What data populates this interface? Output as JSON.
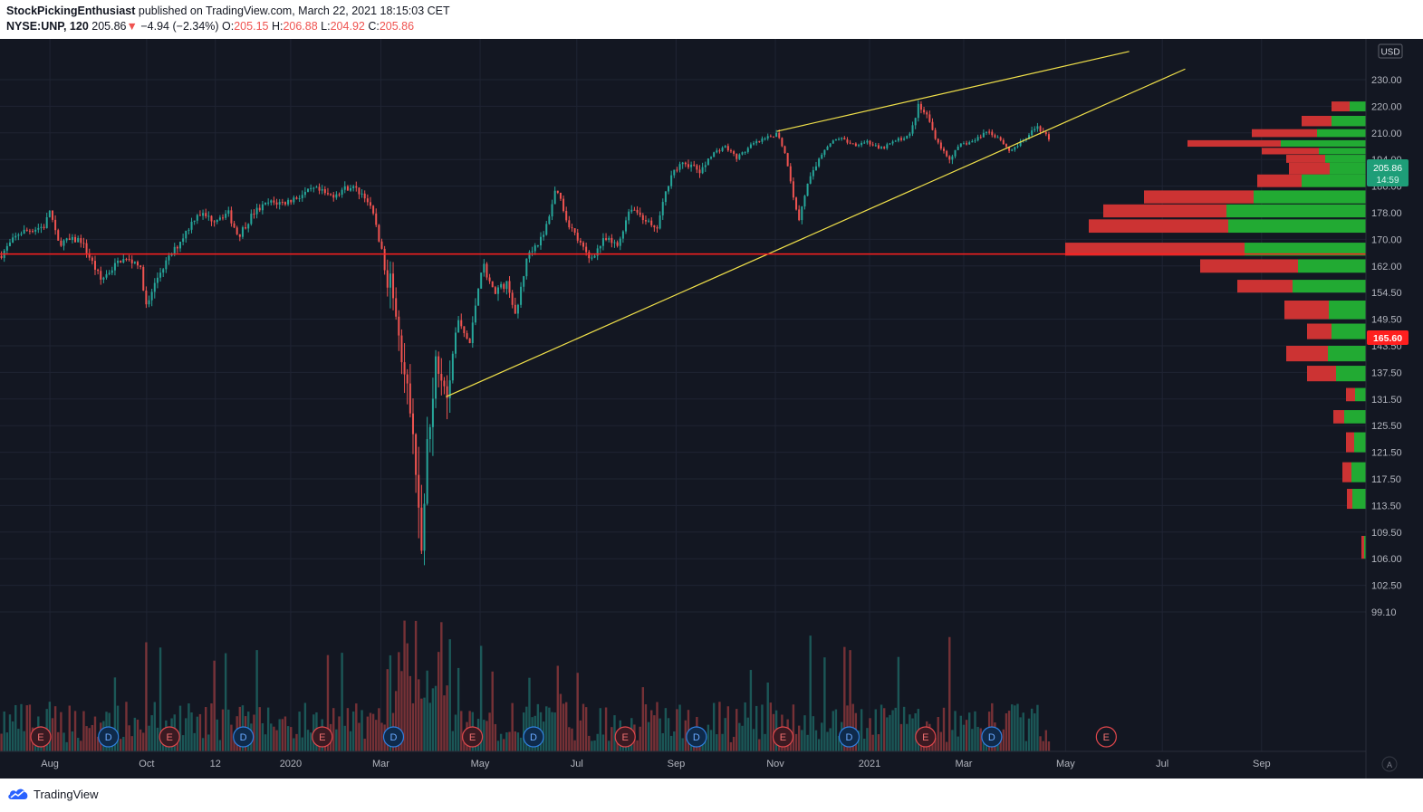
{
  "header": {
    "publisher": "StockPickingEnthusiast",
    "published_text": "published on TradingView.com, March 22, 2021 18:15:03 CET",
    "symbol": "NYSE:UNP, 120",
    "last": "205.86",
    "change_arrow": "▼",
    "change": "−4.94 (−2.34%)",
    "o_label": "O:",
    "o_value": "205.15",
    "h_label": "H:",
    "h_value": "206.88",
    "l_label": "L:",
    "l_value": "204.92",
    "c_label": "C:",
    "c_value": "205.86"
  },
  "footer": {
    "brand": "TradingView"
  },
  "colors": {
    "background": "#131722",
    "up": "#26a69a",
    "down": "#ef5350",
    "trendline": "#f0e04a",
    "hline": "#ff1f1f",
    "vp_up": "#22aa33",
    "vp_down": "#cc3333",
    "grid": "#1f2433",
    "axis_text": "#b2b5be"
  },
  "chart_data": {
    "type": "candlestick",
    "symbol": "NYSE:UNP",
    "interval": "120",
    "currency": "USD",
    "current_price": {
      "price_label": "205.86",
      "countdown": "14:59"
    },
    "horizontal_line": {
      "price": 165.6,
      "label": "165.60"
    },
    "y_ticks": [
      {
        "label": "230.00",
        "value": 230
      },
      {
        "label": "220.00",
        "value": 220
      },
      {
        "label": "210.00",
        "value": 210
      },
      {
        "label": "194.00",
        "value": 194
      },
      {
        "label": "186.00",
        "value": 186
      },
      {
        "label": "178.00",
        "value": 178
      },
      {
        "label": "170.00",
        "value": 170
      },
      {
        "label": "162.00",
        "value": 162
      },
      {
        "label": "154.50",
        "value": 154.5
      },
      {
        "label": "149.50",
        "value": 149.5
      },
      {
        "label": "143.50",
        "value": 143.5
      },
      {
        "label": "137.50",
        "value": 137.5
      },
      {
        "label": "131.50",
        "value": 131.5
      },
      {
        "label": "125.50",
        "value": 125.5
      },
      {
        "label": "121.50",
        "value": 121.5
      },
      {
        "label": "117.50",
        "value": 117.5
      },
      {
        "label": "113.50",
        "value": 113.5
      },
      {
        "label": "109.50",
        "value": 109.5
      },
      {
        "label": "106.00",
        "value": 106
      },
      {
        "label": "102.50",
        "value": 102.5
      },
      {
        "label": "99.10",
        "value": 99.1
      }
    ],
    "x_ticks": [
      {
        "label": "Aug",
        "month": 0.3
      },
      {
        "label": "Oct",
        "month": 2.2
      },
      {
        "label": "12",
        "month": 3.55
      },
      {
        "label": "2020",
        "month": 5.03
      },
      {
        "label": "Mar",
        "month": 6.8
      },
      {
        "label": "May",
        "month": 8.75
      },
      {
        "label": "Jul",
        "month": 10.65
      },
      {
        "label": "Sep",
        "month": 12.6
      },
      {
        "label": "Nov",
        "month": 14.55
      },
      {
        "label": "2021",
        "month": 16.4
      },
      {
        "label": "Mar",
        "month": 18.25
      },
      {
        "label": "May",
        "month": 20.25
      },
      {
        "label": "Jul",
        "month": 22.15
      },
      {
        "label": "Sep",
        "month": 24.1
      }
    ],
    "x_range_months": [
      -0.68,
      26.15
    ],
    "price_path": [
      {
        "m": -0.68,
        "p": 165
      },
      {
        "m": -0.3,
        "p": 172
      },
      {
        "m": 0.2,
        "p": 174
      },
      {
        "m": 0.3,
        "p": 179
      },
      {
        "m": 0.45,
        "p": 169
      },
      {
        "m": 0.9,
        "p": 170
      },
      {
        "m": 1.3,
        "p": 158
      },
      {
        "m": 1.7,
        "p": 164
      },
      {
        "m": 2.05,
        "p": 163
      },
      {
        "m": 2.2,
        "p": 151
      },
      {
        "m": 2.45,
        "p": 160
      },
      {
        "m": 2.8,
        "p": 168
      },
      {
        "m": 3.2,
        "p": 178
      },
      {
        "m": 3.5,
        "p": 176
      },
      {
        "m": 3.8,
        "p": 178
      },
      {
        "m": 4.0,
        "p": 171
      },
      {
        "m": 4.3,
        "p": 178
      },
      {
        "m": 4.6,
        "p": 181
      },
      {
        "m": 4.9,
        "p": 181
      },
      {
        "m": 5.2,
        "p": 183
      },
      {
        "m": 5.5,
        "p": 185
      },
      {
        "m": 5.8,
        "p": 183
      },
      {
        "m": 6.2,
        "p": 186
      },
      {
        "m": 6.5,
        "p": 183
      },
      {
        "m": 6.7,
        "p": 175
      },
      {
        "m": 6.9,
        "p": 160
      },
      {
        "m": 7.1,
        "p": 153
      },
      {
        "m": 7.25,
        "p": 138
      },
      {
        "m": 7.45,
        "p": 121
      },
      {
        "m": 7.6,
        "p": 108
      },
      {
        "m": 7.75,
        "p": 126
      },
      {
        "m": 7.9,
        "p": 142
      },
      {
        "m": 8.1,
        "p": 134
      },
      {
        "m": 8.3,
        "p": 149
      },
      {
        "m": 8.55,
        "p": 144
      },
      {
        "m": 8.8,
        "p": 163
      },
      {
        "m": 9.0,
        "p": 155
      },
      {
        "m": 9.3,
        "p": 157
      },
      {
        "m": 9.45,
        "p": 149
      },
      {
        "m": 9.7,
        "p": 166
      },
      {
        "m": 10.0,
        "p": 171
      },
      {
        "m": 10.25,
        "p": 186
      },
      {
        "m": 10.45,
        "p": 176
      },
      {
        "m": 10.7,
        "p": 169
      },
      {
        "m": 10.9,
        "p": 164
      },
      {
        "m": 11.2,
        "p": 170
      },
      {
        "m": 11.45,
        "p": 168
      },
      {
        "m": 11.7,
        "p": 180
      },
      {
        "m": 12.0,
        "p": 176
      },
      {
        "m": 12.2,
        "p": 172
      },
      {
        "m": 12.5,
        "p": 190
      },
      {
        "m": 12.8,
        "p": 193
      },
      {
        "m": 13.1,
        "p": 190
      },
      {
        "m": 13.3,
        "p": 197
      },
      {
        "m": 13.55,
        "p": 202
      },
      {
        "m": 13.8,
        "p": 195
      },
      {
        "m": 14.1,
        "p": 203
      },
      {
        "m": 14.4,
        "p": 207
      },
      {
        "m": 14.6,
        "p": 210
      },
      {
        "m": 14.72,
        "p": 199
      },
      {
        "m": 14.85,
        "p": 188
      },
      {
        "m": 15.0,
        "p": 175
      },
      {
        "m": 15.15,
        "p": 185
      },
      {
        "m": 15.35,
        "p": 192
      },
      {
        "m": 15.55,
        "p": 202
      },
      {
        "m": 15.8,
        "p": 207
      },
      {
        "m": 16.1,
        "p": 203
      },
      {
        "m": 16.35,
        "p": 205
      },
      {
        "m": 16.6,
        "p": 200
      },
      {
        "m": 16.9,
        "p": 205
      },
      {
        "m": 17.2,
        "p": 209
      },
      {
        "m": 17.35,
        "p": 220
      },
      {
        "m": 17.55,
        "p": 216
      },
      {
        "m": 17.75,
        "p": 204
      },
      {
        "m": 17.95,
        "p": 194
      },
      {
        "m": 18.2,
        "p": 203
      },
      {
        "m": 18.45,
        "p": 205
      },
      {
        "m": 18.7,
        "p": 211
      },
      {
        "m": 18.95,
        "p": 207
      },
      {
        "m": 19.15,
        "p": 199
      },
      {
        "m": 19.45,
        "p": 206
      },
      {
        "m": 19.7,
        "p": 213
      },
      {
        "m": 19.95,
        "p": 206
      }
    ],
    "trendlines": [
      {
        "name": "upper",
        "m1": 14.58,
        "p1": 210.6,
        "m2": 21.5,
        "p2": 240.6
      },
      {
        "name": "lower",
        "m1": 8.08,
        "p1": 132.0,
        "m2": 22.6,
        "p2": 234.0
      }
    ],
    "events": [
      {
        "label": "E",
        "month": 0.12
      },
      {
        "label": "D",
        "month": 1.45
      },
      {
        "label": "E",
        "month": 2.65
      },
      {
        "label": "D",
        "month": 4.1
      },
      {
        "label": "E",
        "month": 5.65
      },
      {
        "label": "D",
        "month": 7.05
      },
      {
        "label": "E",
        "month": 8.6
      },
      {
        "label": "D",
        "month": 9.8
      },
      {
        "label": "E",
        "month": 11.6
      },
      {
        "label": "D",
        "month": 13.0
      },
      {
        "label": "E",
        "month": 14.7
      },
      {
        "label": "D",
        "month": 16.0
      },
      {
        "label": "E",
        "month": 17.5
      },
      {
        "label": "D",
        "month": 18.8
      },
      {
        "label": "E",
        "month": 21.05,
        "future": true
      }
    ],
    "volume_profile": [
      {
        "p_low": 218.1,
        "p_high": 221.8,
        "down": 20,
        "up": 18
      },
      {
        "p_low": 212.5,
        "p_high": 216.4,
        "down": 33,
        "up": 38
      },
      {
        "p_low": 207.5,
        "p_high": 211.4,
        "down": 72,
        "up": 54
      },
      {
        "p_low": 201.7,
        "p_high": 205.6,
        "down": 103,
        "up": 94
      },
      {
        "p_low": 197.1,
        "p_high": 201.0,
        "down": 63,
        "up": 52
      },
      {
        "p_low": 193.0,
        "p_high": 196.8,
        "down": 43,
        "up": 45
      },
      {
        "p_low": 189.5,
        "p_high": 193.0,
        "down": 45,
        "up": 40
      },
      {
        "p_low": 185.7,
        "p_high": 189.5,
        "down": 49,
        "up": 71
      },
      {
        "p_low": 180.8,
        "p_high": 184.7,
        "down": 121,
        "up": 124
      },
      {
        "p_low": 176.6,
        "p_high": 180.5,
        "down": 136,
        "up": 154
      },
      {
        "p_low": 172.0,
        "p_high": 176.0,
        "down": 154,
        "up": 152
      },
      {
        "p_low": 165.1,
        "p_high": 169.0,
        "down": 198,
        "up": 134
      },
      {
        "p_low": 160.1,
        "p_high": 164.0,
        "down": 108,
        "up": 75
      },
      {
        "p_low": 154.5,
        "p_high": 158.1,
        "down": 61,
        "up": 81
      },
      {
        "p_low": 149.5,
        "p_high": 153.0,
        "down": 49,
        "up": 41
      },
      {
        "p_low": 145.0,
        "p_high": 148.5,
        "down": 27,
        "up": 38
      },
      {
        "p_low": 140.0,
        "p_high": 143.5,
        "down": 46,
        "up": 42
      },
      {
        "p_low": 135.5,
        "p_high": 139.0,
        "down": 32,
        "up": 33
      },
      {
        "p_low": 131.0,
        "p_high": 134.0,
        "down": 10,
        "up": 12
      },
      {
        "p_low": 126.0,
        "p_high": 129.0,
        "down": 12,
        "up": 24
      },
      {
        "p_low": 121.5,
        "p_high": 124.5,
        "down": 9,
        "up": 13
      },
      {
        "p_low": 117.0,
        "p_high": 120.0,
        "down": 10,
        "up": 16
      },
      {
        "p_low": 113.0,
        "p_high": 116.0,
        "down": 6,
        "up": 15
      },
      {
        "p_low": 106.0,
        "p_high": 109.0,
        "down": 3,
        "up": 2
      }
    ]
  }
}
